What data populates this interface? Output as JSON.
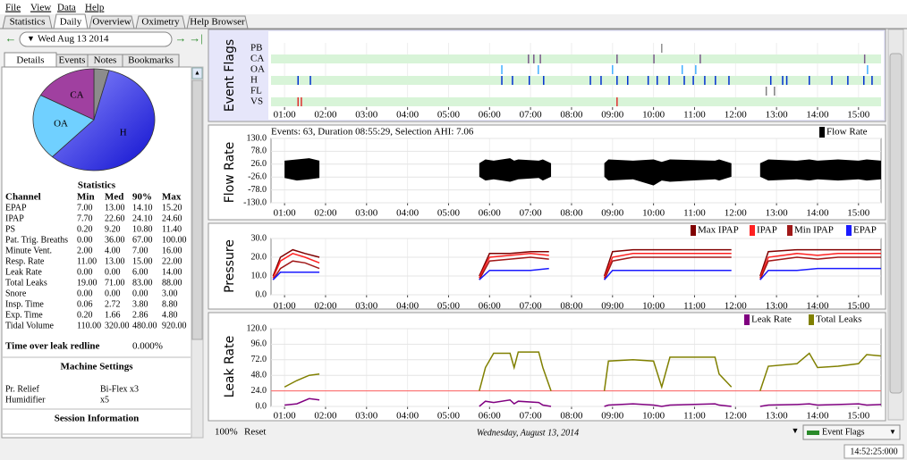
{
  "menu": [
    "File",
    "View",
    "Data",
    "Help"
  ],
  "tabs": [
    "Statistics",
    "Daily",
    "Overview",
    "Oximetry",
    "Help Browser"
  ],
  "active_tab": 1,
  "date": "Wed Aug 13 2014",
  "detail_tabs": [
    "Details",
    "Events",
    "Notes",
    "Bookmarks"
  ],
  "active_detail_tab": 0,
  "pie": {
    "type": "pie",
    "labels": [
      null,
      "H",
      "OA",
      "CA"
    ],
    "values": [
      4,
      58,
      21,
      17
    ],
    "colors": [
      "#8c8c8c",
      "#3030f0",
      "#70d0ff",
      "#a040a0"
    ]
  },
  "statistics": {
    "title": "Statistics",
    "columns": [
      "Channel",
      "Min",
      "Med",
      "90%",
      "Max"
    ],
    "rows": [
      [
        "EPAP",
        "7.00",
        "13.00",
        "14.10",
        "15.20"
      ],
      [
        "IPAP",
        "7.70",
        "22.60",
        "24.10",
        "24.60"
      ],
      [
        "PS",
        "0.20",
        "9.20",
        "10.80",
        "11.40"
      ],
      [
        "Pat. Trig. Breaths",
        "0.00",
        "36.00",
        "67.00",
        "100.00"
      ],
      [
        "Minute Vent.",
        "2.00",
        "4.00",
        "7.00",
        "16.00"
      ],
      [
        "Resp. Rate",
        "11.00",
        "13.00",
        "15.00",
        "22.00"
      ],
      [
        "Leak Rate",
        "0.00",
        "0.00",
        "6.00",
        "14.00"
      ],
      [
        "Total Leaks",
        "19.00",
        "71.00",
        "83.00",
        "88.00"
      ],
      [
        "Snore",
        "0.00",
        "0.00",
        "0.00",
        "3.00"
      ],
      [
        "Insp. Time",
        "0.06",
        "2.72",
        "3.80",
        "8.80"
      ],
      [
        "Exp. Time",
        "0.20",
        "1.66",
        "2.86",
        "4.80"
      ],
      [
        "Tidal Volume",
        "110.00",
        "320.00",
        "480.00",
        "920.00"
      ]
    ]
  },
  "leak_redline": {
    "label": "Time over leak redline",
    "value": "0.000%"
  },
  "machine_settings": {
    "title": "Machine Settings",
    "rows": [
      [
        "Pr. Relief",
        "Bi-Flex x3"
      ],
      [
        "Humidifier",
        "x5"
      ]
    ]
  },
  "session_information": {
    "title": "Session Information"
  },
  "time_axis": {
    "xlim": [
      0.67,
      15.55
    ],
    "xticks": [
      {
        "value": 1,
        "label": "01:00"
      },
      {
        "value": 2,
        "label": "02:00"
      },
      {
        "value": 3,
        "label": "03:00"
      },
      {
        "value": 4,
        "label": "04:00"
      },
      {
        "value": 5,
        "label": "05:00"
      },
      {
        "value": 6,
        "label": "06:00"
      },
      {
        "value": 7,
        "label": "07:00"
      },
      {
        "value": 8,
        "label": "08:00"
      },
      {
        "value": 9,
        "label": "09:00"
      },
      {
        "value": 10,
        "label": "10:00"
      },
      {
        "value": 11,
        "label": "11:00"
      },
      {
        "value": 12,
        "label": "12:00"
      },
      {
        "value": 13,
        "label": "13:00"
      },
      {
        "value": 14,
        "label": "14:00"
      },
      {
        "value": 15,
        "label": "15:00"
      }
    ]
  },
  "graphs": [
    {
      "type": "events",
      "title": "Event Flags",
      "rows": [
        {
          "name": "PB",
          "color": "#909090",
          "times": [
            10.2
          ]
        },
        {
          "name": "CA",
          "color": "#7a5a8a",
          "times": [
            6.95,
            7.08,
            7.24,
            9.11,
            10.01,
            11.14,
            15.15
          ]
        },
        {
          "name": "OA",
          "color": "#40b0ff",
          "times": [
            6.3,
            7.19,
            9.0,
            10.7,
            11.03,
            15.22
          ]
        },
        {
          "name": "H",
          "color": "#0030d0",
          "times": [
            1.33,
            1.63,
            6.3,
            6.56,
            6.97,
            7.32,
            8.46,
            8.72,
            9.11,
            9.37,
            9.87,
            10.09,
            10.38,
            10.75,
            10.97,
            11.25,
            11.51,
            11.84,
            12.86,
            13.15,
            13.25,
            13.8,
            14.35,
            14.74,
            15.13,
            15.33
          ]
        },
        {
          "name": "FL",
          "color": "#808080",
          "times": [
            12.75,
            12.95
          ]
        },
        {
          "name": "VS",
          "color": "#e03030",
          "times": [
            1.33,
            1.41,
            9.11
          ]
        }
      ]
    },
    {
      "type": "area",
      "title": "Flow Rate",
      "header": "Events: 63, Duration 08:55:29, Selection AHI: 7.06",
      "ylim": [
        -130,
        130
      ],
      "yticks": [
        {
          "value": 130,
          "label": "130.0"
        },
        {
          "value": 78,
          "label": "78.0"
        },
        {
          "value": 26,
          "label": "26.0"
        },
        {
          "value": -26,
          "label": "-26.0"
        },
        {
          "value": -78,
          "label": "-78.0"
        },
        {
          "value": -130,
          "label": "-130.0"
        }
      ],
      "x": [
        1.0,
        1.3,
        1.6,
        1.85,
        3.0,
        5.75,
        5.9,
        6.1,
        6.5,
        6.6,
        6.7,
        7.2,
        7.3,
        7.5,
        8.0,
        8.8,
        8.9,
        9.5,
        10.0,
        10.2,
        10.4,
        11.5,
        11.6,
        11.9,
        12.2,
        12.6,
        12.8,
        13.5,
        13.8,
        14.0,
        14.5,
        15.0,
        15.2,
        15.55
      ],
      "series": [
        {
          "name": "Flow Rate",
          "color": "#000000",
          "values": [
            40,
            45,
            50,
            40,
            null,
            30,
            45,
            40,
            50,
            40,
            45,
            40,
            45,
            30,
            null,
            30,
            45,
            40,
            45,
            35,
            45,
            40,
            45,
            30,
            null,
            30,
            45,
            40,
            45,
            40,
            45,
            40,
            45,
            40
          ],
          "lower": [
            -30,
            -40,
            -35,
            -30,
            null,
            -25,
            -40,
            -35,
            -45,
            -40,
            -35,
            -30,
            -40,
            -25,
            null,
            -25,
            -40,
            -35,
            -60,
            -40,
            -45,
            -35,
            -40,
            -25,
            null,
            -25,
            -40,
            -35,
            -40,
            -35,
            -40,
            -35,
            -40,
            -35
          ]
        }
      ]
    },
    {
      "type": "line",
      "title": "Pressure",
      "ylim": [
        0,
        30
      ],
      "yticks": [
        {
          "value": 30,
          "label": "30.0"
        },
        {
          "value": 20,
          "label": "20.0"
        },
        {
          "value": 10,
          "label": "10.0"
        },
        {
          "value": 0,
          "label": "0.0"
        }
      ],
      "x": [
        0.72,
        0.9,
        1.2,
        1.5,
        1.85,
        3.0,
        5.75,
        6.0,
        6.5,
        7.0,
        7.45,
        8.0,
        8.8,
        9.0,
        9.5,
        10.0,
        10.5,
        11.0,
        11.5,
        11.9,
        12.2,
        12.6,
        12.8,
        13.5,
        14.0,
        14.5,
        15.0,
        15.55
      ],
      "series": [
        {
          "name": "Max IPAP",
          "color": "#800000",
          "values": [
            10,
            20,
            24,
            22,
            20,
            null,
            10,
            22,
            22,
            23,
            23,
            null,
            10,
            23,
            24,
            24,
            24,
            24,
            24,
            24,
            null,
            10,
            23,
            24,
            24,
            24,
            24,
            24
          ]
        },
        {
          "name": "IPAP",
          "color": "#ff2020",
          "values": [
            9,
            18,
            22,
            20,
            17,
            null,
            9,
            20,
            21,
            22,
            21,
            null,
            9,
            20,
            22,
            22,
            22,
            22,
            22,
            22,
            null,
            9,
            20,
            22,
            21,
            22,
            22,
            22
          ]
        },
        {
          "name": "Min IPAP",
          "color": "#a01818",
          "values": [
            8,
            14,
            18,
            17,
            14,
            null,
            8,
            18,
            19,
            20,
            19,
            null,
            8,
            18,
            20,
            20,
            20,
            20,
            20,
            20,
            null,
            8,
            18,
            20,
            19,
            20,
            20,
            20
          ]
        },
        {
          "name": "EPAP",
          "color": "#1a1aff",
          "values": [
            8,
            12,
            12,
            12,
            12,
            null,
            8,
            13,
            13,
            13,
            14,
            null,
            8,
            13,
            13,
            13,
            13,
            13,
            13,
            13,
            null,
            8,
            13,
            13,
            14,
            14,
            14,
            14
          ]
        }
      ]
    },
    {
      "type": "line",
      "title": "Leak Rate",
      "ylim": [
        0,
        120
      ],
      "yticks": [
        {
          "value": 120,
          "label": "120.0"
        },
        {
          "value": 96,
          "label": "96.0"
        },
        {
          "value": 72,
          "label": "72.0"
        },
        {
          "value": 48,
          "label": "48.0"
        },
        {
          "value": 24,
          "label": "24.0"
        },
        {
          "value": 0,
          "label": "0.0"
        }
      ],
      "redline": 24,
      "x": [
        1.0,
        1.3,
        1.6,
        1.85,
        3.0,
        5.75,
        5.9,
        6.1,
        6.5,
        6.6,
        6.7,
        7.2,
        7.3,
        7.5,
        8.0,
        8.8,
        8.9,
        9.5,
        10.0,
        10.2,
        10.4,
        11.5,
        11.6,
        11.9,
        12.2,
        12.6,
        12.8,
        13.5,
        13.8,
        14.0,
        14.5,
        15.0,
        15.2,
        15.55
      ],
      "series": [
        {
          "name": "Leak Rate",
          "color": "#800080",
          "values": [
            2,
            4,
            12,
            10,
            null,
            0,
            8,
            6,
            10,
            4,
            8,
            6,
            2,
            0,
            null,
            0,
            2,
            4,
            2,
            0,
            2,
            4,
            2,
            0,
            null,
            0,
            2,
            3,
            4,
            2,
            3,
            4,
            2,
            3
          ]
        },
        {
          "name": "Total Leaks",
          "color": "#808000",
          "values": [
            30,
            40,
            48,
            50,
            null,
            24,
            60,
            82,
            82,
            60,
            84,
            84,
            60,
            24,
            null,
            24,
            70,
            72,
            70,
            30,
            76,
            76,
            50,
            30,
            null,
            24,
            62,
            66,
            82,
            60,
            62,
            66,
            80,
            78
          ]
        }
      ]
    }
  ],
  "footer": {
    "zoom": "100%",
    "reset": "Reset",
    "date": "Wednesday, August 13, 2014",
    "dropdown": "Event Flags"
  },
  "status": "14:52:25:000"
}
